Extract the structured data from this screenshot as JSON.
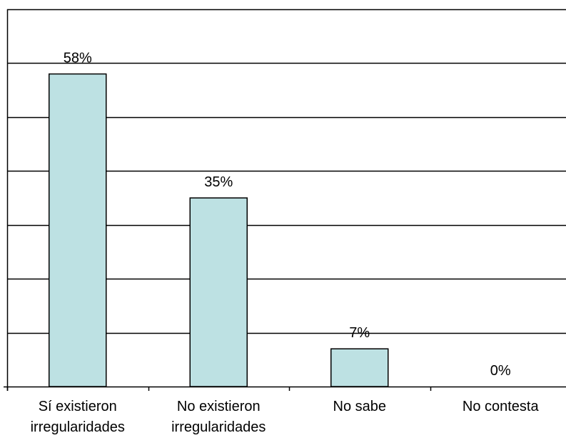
{
  "chart_data": {
    "type": "bar",
    "categories": [
      [
        "Sí existieron",
        "irregularidades"
      ],
      [
        "No existieron",
        "irregularidades"
      ],
      [
        "No sabe"
      ],
      [
        "No contesta"
      ]
    ],
    "values": [
      58,
      35,
      7,
      0
    ],
    "data_labels": [
      "58%",
      "35%",
      "7%",
      "0%"
    ],
    "title": "",
    "xlabel": "",
    "ylabel": "",
    "ylim": [
      0,
      70
    ],
    "y_gridline_step": 10,
    "grid": true,
    "legend": "none",
    "colors": {
      "bar_fill": "#BDE1E3",
      "bar_stroke": "#000000",
      "gridline": "#000000",
      "axis": "#000000"
    }
  }
}
